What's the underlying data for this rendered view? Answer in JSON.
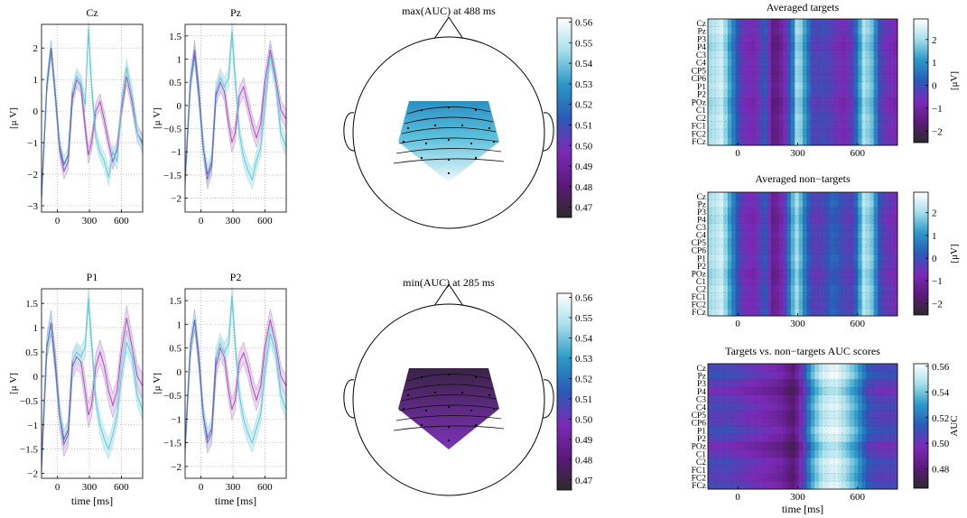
{
  "colors": {
    "targets": "#5fc8d8",
    "targets_band": "#bfe8ef",
    "nontargets": "#a050b8",
    "nontargets_band": "#e2c4ea",
    "overlap": "#5a70c8",
    "cmap": [
      "#2b2b2b",
      "#5a1a78",
      "#7b2ab8",
      "#2a5ab8",
      "#2a9ac8",
      "#a8e0ec",
      "#ffffff"
    ]
  },
  "chart_data": [
    {
      "type": "line",
      "title": "Cz",
      "ylabel": "[μ V]",
      "xlabel": "",
      "xlim": [
        -150,
        800
      ],
      "ylim": [
        -3.2,
        2.75
      ],
      "xticks": [
        0,
        300,
        600
      ],
      "yticks": [
        -3,
        -2,
        -1,
        0,
        1,
        2
      ],
      "grid": true,
      "series": [
        {
          "x": [
            -150,
            -100,
            -60,
            -20,
            20,
            60,
            100,
            140,
            180,
            220,
            260,
            290,
            320,
            360,
            400,
            440,
            480,
            520,
            560,
            600,
            650,
            700,
            750,
            800
          ],
          "values": [
            -2.7,
            0.8,
            2.0,
            0.5,
            -1.2,
            -1.9,
            -1.6,
            0.4,
            1.0,
            0.8,
            -0.5,
            -1.4,
            -1.0,
            0.0,
            0.3,
            -0.3,
            -1.0,
            -1.6,
            -1.2,
            0.0,
            1.1,
            0.3,
            -0.7,
            -1.0
          ],
          "band": 0.25
        },
        {
          "x": [
            -150,
            -100,
            -60,
            -20,
            20,
            60,
            100,
            140,
            180,
            220,
            260,
            290,
            320,
            360,
            400,
            440,
            480,
            520,
            560,
            600,
            650,
            700,
            750,
            800
          ],
          "values": [
            -2.7,
            0.8,
            2.0,
            0.5,
            -1.1,
            -1.7,
            -1.4,
            0.6,
            1.1,
            0.9,
            0.2,
            2.6,
            0.8,
            -0.8,
            -1.3,
            -1.6,
            -2.1,
            -1.3,
            -1.6,
            0.2,
            1.4,
            0.5,
            -0.7,
            -1.1
          ],
          "band": 0.25
        }
      ]
    },
    {
      "type": "line",
      "title": "Pz",
      "ylabel": "[μ V]",
      "xlabel": "",
      "xlim": [
        -150,
        800
      ],
      "ylim": [
        -2.3,
        1.75
      ],
      "xticks": [
        0,
        300,
        600
      ],
      "yticks": [
        -2,
        -1.5,
        -1,
        -0.5,
        0,
        0.5,
        1,
        1.5
      ],
      "grid": true,
      "series": [
        {
          "x": [
            -150,
            -100,
            -60,
            -20,
            20,
            60,
            100,
            140,
            180,
            220,
            260,
            290,
            320,
            360,
            400,
            440,
            480,
            520,
            560,
            600,
            650,
            700,
            750,
            800
          ],
          "values": [
            -1.6,
            0.5,
            1.2,
            0.3,
            -0.9,
            -1.6,
            -1.3,
            0.2,
            0.5,
            0.3,
            -0.4,
            -0.8,
            -0.6,
            0.2,
            0.4,
            0.0,
            -0.4,
            -0.7,
            -0.4,
            0.5,
            1.2,
            0.6,
            -0.1,
            -0.3
          ],
          "band": 0.2
        },
        {
          "x": [
            -150,
            -100,
            -60,
            -20,
            20,
            60,
            100,
            140,
            180,
            220,
            260,
            290,
            320,
            360,
            400,
            440,
            480,
            520,
            560,
            600,
            650,
            700,
            750,
            800
          ],
          "values": [
            -1.6,
            0.5,
            1.1,
            0.2,
            -0.9,
            -1.5,
            -1.2,
            0.3,
            0.6,
            0.4,
            0.6,
            1.6,
            0.6,
            -0.6,
            -1.1,
            -1.4,
            -1.6,
            -1.2,
            -0.9,
            0.0,
            1.1,
            0.5,
            -0.6,
            -0.9
          ],
          "band": 0.2
        }
      ]
    },
    {
      "type": "line",
      "title": "P1",
      "ylabel": "[μ V]",
      "xlabel": "time [ms]",
      "xlim": [
        -150,
        800
      ],
      "ylim": [
        -2.1,
        1.8
      ],
      "xticks": [
        0,
        300,
        600
      ],
      "yticks": [
        -2,
        -1.5,
        -1,
        -0.5,
        0,
        0.5,
        1,
        1.5
      ],
      "grid": true,
      "series": [
        {
          "x": [
            -150,
            -100,
            -60,
            -20,
            20,
            60,
            100,
            140,
            180,
            220,
            260,
            290,
            320,
            360,
            400,
            440,
            480,
            520,
            560,
            600,
            650,
            700,
            750,
            800
          ],
          "values": [
            -1.8,
            0.6,
            1.1,
            0.3,
            -0.8,
            -1.4,
            -1.2,
            0.2,
            0.4,
            0.3,
            -0.3,
            -0.8,
            -0.6,
            0.2,
            0.5,
            0.2,
            -0.3,
            -0.6,
            -0.3,
            0.5,
            1.2,
            0.6,
            0.0,
            -0.2
          ],
          "band": 0.25
        },
        {
          "x": [
            -150,
            -100,
            -60,
            -20,
            20,
            60,
            100,
            140,
            180,
            220,
            260,
            290,
            320,
            360,
            400,
            440,
            480,
            520,
            560,
            600,
            650,
            700,
            750,
            800
          ],
          "values": [
            -1.8,
            0.6,
            1.1,
            0.2,
            -0.8,
            -1.3,
            -1.1,
            0.3,
            0.5,
            0.4,
            0.6,
            1.6,
            0.7,
            -0.5,
            -1.0,
            -1.3,
            -1.5,
            -1.2,
            -0.8,
            0.0,
            0.7,
            0.4,
            -0.4,
            -0.7
          ],
          "band": 0.2
        }
      ]
    },
    {
      "type": "line",
      "title": "P2",
      "ylabel": "[μ V]",
      "xlabel": "time [ms]",
      "xlim": [
        -150,
        800
      ],
      "ylim": [
        -2.25,
        1.75
      ],
      "xticks": [
        0,
        300,
        600
      ],
      "yticks": [
        -2,
        -1.5,
        -1,
        -0.5,
        0,
        0.5,
        1,
        1.5
      ],
      "grid": true,
      "series": [
        {
          "x": [
            -150,
            -100,
            -60,
            -20,
            20,
            60,
            100,
            140,
            180,
            220,
            260,
            290,
            320,
            360,
            400,
            440,
            480,
            520,
            560,
            600,
            650,
            700,
            750,
            800
          ],
          "values": [
            -1.6,
            0.5,
            1.1,
            0.3,
            -0.9,
            -1.5,
            -1.3,
            0.1,
            0.5,
            0.3,
            -0.4,
            -0.8,
            -0.6,
            0.2,
            0.4,
            0.1,
            -0.3,
            -0.6,
            -0.3,
            0.5,
            1.1,
            0.6,
            -0.1,
            -0.3
          ],
          "band": 0.22
        },
        {
          "x": [
            -150,
            -100,
            -60,
            -20,
            20,
            60,
            100,
            140,
            180,
            220,
            260,
            290,
            320,
            360,
            400,
            440,
            480,
            520,
            560,
            600,
            650,
            700,
            750,
            800
          ],
          "values": [
            -1.6,
            0.5,
            1.1,
            0.2,
            -0.9,
            -1.4,
            -1.2,
            0.3,
            0.6,
            0.4,
            0.6,
            1.6,
            0.6,
            -0.5,
            -1.0,
            -1.3,
            -1.5,
            -1.2,
            -0.9,
            0.0,
            0.8,
            0.4,
            -0.5,
            -0.8
          ],
          "band": 0.2
        }
      ]
    },
    {
      "type": "heatmap",
      "title": "max(AUC) at 488 ms",
      "colorbar_ticks": [
        0.47,
        0.48,
        0.49,
        0.5,
        0.51,
        0.52,
        0.53,
        0.54,
        0.55,
        0.56
      ],
      "clim": [
        0.465,
        0.562
      ],
      "gradient": "top-low-bottom-high"
    },
    {
      "type": "heatmap",
      "title": "min(AUC) at 285 ms",
      "colorbar_ticks": [
        0.47,
        0.48,
        0.49,
        0.5,
        0.51,
        0.52,
        0.53,
        0.54,
        0.55,
        0.56
      ],
      "clim": [
        0.465,
        0.562
      ],
      "gradient": "low"
    },
    {
      "type": "heatmap",
      "title": "Averaged targets",
      "ylabels": [
        "Cz",
        "Pz",
        "P3",
        "P4",
        "C3",
        "C4",
        "CP5",
        "CP6",
        "P1",
        "P2",
        "POz",
        "C1",
        "C2",
        "FC1",
        "FC2",
        "FCz"
      ],
      "xlim": [
        -150,
        800
      ],
      "xticks": [
        0,
        300,
        600
      ],
      "xlabel": "",
      "colorbar_label": "[μV]",
      "colorbar_ticks": [
        -2,
        -1,
        0,
        1,
        2
      ],
      "clim": [
        -2.5,
        2.9
      ],
      "pattern": [
        [
          -150,
          1.9
        ],
        [
          -80,
          2.4
        ],
        [
          -30,
          0.9
        ],
        [
          20,
          -0.5
        ],
        [
          80,
          -0.8
        ],
        [
          140,
          0.2
        ],
        [
          180,
          -1.6
        ],
        [
          230,
          -0.9
        ],
        [
          280,
          0.8
        ],
        [
          300,
          2.2
        ],
        [
          330,
          1.3
        ],
        [
          380,
          -0.3
        ],
        [
          430,
          -0.1
        ],
        [
          480,
          -0.4
        ],
        [
          530,
          -0.8
        ],
        [
          580,
          -0.2
        ],
        [
          630,
          2.0
        ],
        [
          670,
          1.6
        ],
        [
          720,
          -0.4
        ],
        [
          800,
          -0.8
        ]
      ]
    },
    {
      "type": "heatmap",
      "title": "Averaged non−targets",
      "ylabels": [
        "Cz",
        "Pz",
        "P3",
        "P4",
        "C3",
        "C4",
        "CP5",
        "CP6",
        "P1",
        "P2",
        "POz",
        "C1",
        "C2",
        "FC1",
        "FC2",
        "FCz"
      ],
      "xlim": [
        -150,
        800
      ],
      "xticks": [
        0,
        300,
        600
      ],
      "xlabel": "",
      "colorbar_label": "[μV]",
      "colorbar_ticks": [
        -2,
        -1,
        0,
        1,
        2
      ],
      "clim": [
        -2.5,
        2.9
      ],
      "pattern": [
        [
          -150,
          1.9
        ],
        [
          -80,
          2.4
        ],
        [
          -30,
          0.9
        ],
        [
          20,
          -0.5
        ],
        [
          80,
          -0.8
        ],
        [
          140,
          0.2
        ],
        [
          180,
          -1.4
        ],
        [
          230,
          -0.6
        ],
        [
          280,
          1.6
        ],
        [
          300,
          2.0
        ],
        [
          330,
          0.8
        ],
        [
          380,
          -0.4
        ],
        [
          430,
          -0.2
        ],
        [
          480,
          0.4
        ],
        [
          530,
          -0.2
        ],
        [
          580,
          -0.3
        ],
        [
          630,
          2.1
        ],
        [
          670,
          1.7
        ],
        [
          720,
          -0.3
        ],
        [
          800,
          -0.7
        ]
      ]
    },
    {
      "type": "heatmap",
      "title": "Targets vs. non−targets AUC scores",
      "ylabels": [
        "Cz",
        "Pz",
        "P3",
        "P4",
        "C3",
        "C4",
        "CP5",
        "CP6",
        "P1",
        "P2",
        "POz",
        "C1",
        "C2",
        "FC1",
        "FC2",
        "FCz"
      ],
      "xlim": [
        -150,
        800
      ],
      "xticks": [
        0,
        300,
        600
      ],
      "xlabel": "time [ms]",
      "colorbar_label": "AUC",
      "colorbar_ticks": [
        0.48,
        0.5,
        0.52,
        0.54,
        0.56
      ],
      "clim": [
        0.465,
        0.562
      ],
      "pattern": [
        [
          -150,
          0.505
        ],
        [
          -50,
          0.505
        ],
        [
          50,
          0.5
        ],
        [
          150,
          0.495
        ],
        [
          220,
          0.49
        ],
        [
          280,
          0.478
        ],
        [
          330,
          0.505
        ],
        [
          380,
          0.535
        ],
        [
          430,
          0.55
        ],
        [
          488,
          0.555
        ],
        [
          540,
          0.545
        ],
        [
          600,
          0.53
        ],
        [
          650,
          0.51
        ],
        [
          720,
          0.505
        ],
        [
          800,
          0.505
        ]
      ]
    }
  ]
}
